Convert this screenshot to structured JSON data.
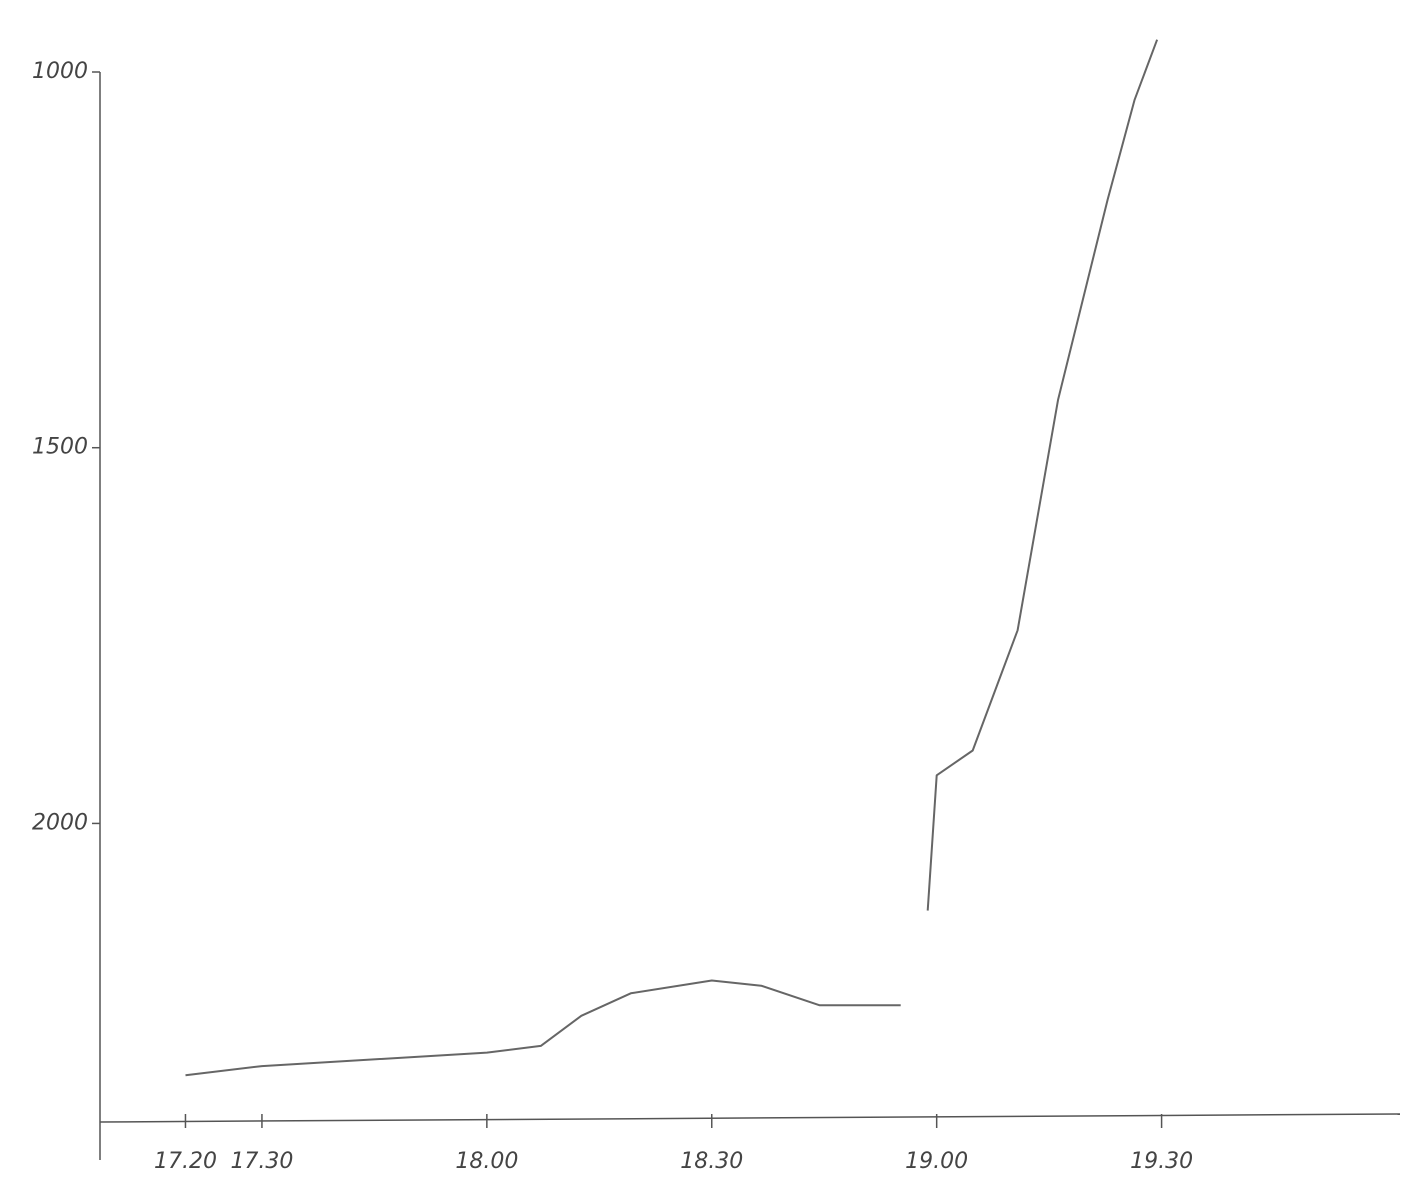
{
  "chart_data": {
    "type": "line",
    "x": [
      17.33,
      17.5,
      18.0,
      18.12,
      18.21,
      18.32,
      18.5,
      18.61,
      18.74,
      18.92,
      null,
      18.98,
      19.0,
      19.08,
      19.18,
      19.27,
      19.38,
      19.44,
      19.49
    ],
    "series": [
      {
        "name": null,
        "color": "#666666",
        "values": [
          2335,
          2323,
          2305,
          2296,
          2256,
          2226,
          2209,
          2216,
          2242,
          2242,
          null,
          2116,
          1936,
          1903,
          1743,
          1436,
          1170,
          1037,
          957
        ]
      }
    ],
    "xlim": [
      17.14,
      20.03
    ],
    "xticks": [
      {
        "value": 17.33,
        "label": "17.20"
      },
      {
        "value": 17.5,
        "label": "17.30"
      },
      {
        "value": 18.0,
        "label": "18.00"
      },
      {
        "value": 18.5,
        "label": "18.30"
      },
      {
        "value": 19.0,
        "label": "19.00"
      },
      {
        "value": 19.5,
        "label": "19.30"
      }
    ],
    "ylim": [
      2400,
      1000
    ],
    "yticks": [
      1000,
      1500,
      2000
    ]
  }
}
